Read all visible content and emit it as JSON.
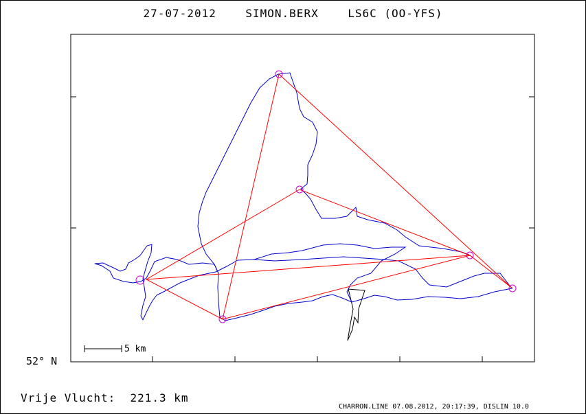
{
  "title": "27-07-2012    SIMON.BERX    LS6C (OO-YFS)",
  "latitude_label": "52° N",
  "scale_bar": {
    "label": "5 km"
  },
  "distance_text": "Vrije Vlucht:  221.3 km",
  "footer": "CHARRON.LINE 07.08.2012, 20:17:39, DISLIN 10.0",
  "colors": {
    "track": "#0000cc",
    "task": "#ff0000",
    "turnpoint": "#cc00cc",
    "outline": "#000000",
    "background": "#ffffff"
  }
}
